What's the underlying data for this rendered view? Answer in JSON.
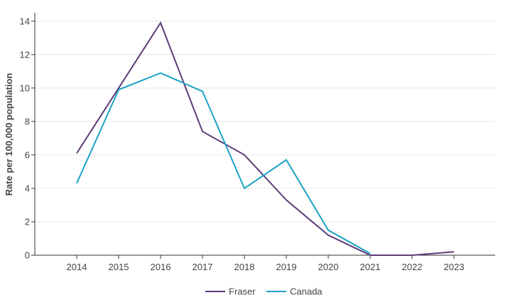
{
  "chart_data": {
    "type": "line",
    "title": "",
    "xlabel": "",
    "ylabel": "Rate per 100,000 population",
    "categories": [
      "2014",
      "2015",
      "2016",
      "2017",
      "2018",
      "2019",
      "2020",
      "2021",
      "2022",
      "2023"
    ],
    "ylim": [
      0,
      14.5
    ],
    "yticks": [
      "0",
      "2",
      "4",
      "6",
      "8",
      "10",
      "12",
      "14"
    ],
    "grid": "horizontal",
    "legend_position": "bottom-center",
    "series": [
      {
        "name": "Fraser",
        "color": "#5c3c78",
        "values": [
          6.1,
          10.0,
          13.9,
          7.4,
          6.0,
          3.3,
          1.2,
          0.0,
          0.0,
          0.2
        ]
      },
      {
        "name": "Canada",
        "color": "#1ba1c6",
        "values": [
          4.3,
          9.9,
          10.9,
          9.8,
          4.0,
          5.7,
          1.5,
          0.1,
          null,
          null
        ]
      }
    ]
  }
}
